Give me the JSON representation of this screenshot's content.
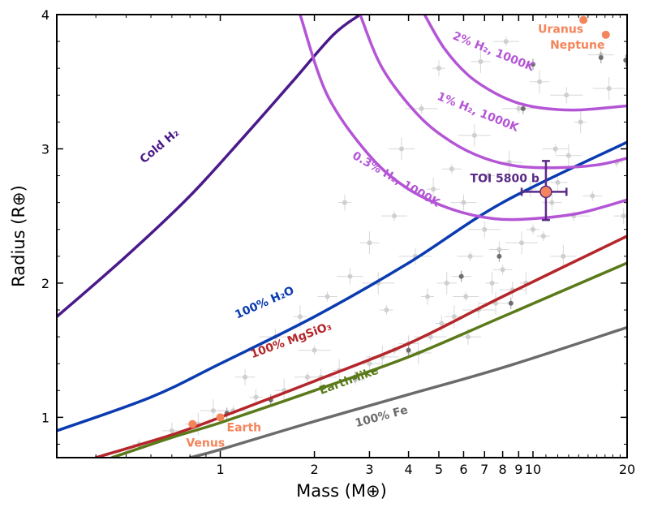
{
  "chart_data": {
    "type": "line",
    "xlabel": "Mass (M⊕)",
    "ylabel": "Radius (R⊕)",
    "xscale": "log",
    "xlim": [
      0.3,
      20
    ],
    "ylim": [
      0.7,
      4
    ],
    "x_ticks": [
      "1",
      "2",
      "3",
      "4",
      "5",
      "6",
      "7",
      "8",
      "9",
      "10",
      "20"
    ],
    "y_ticks": [
      "1",
      "2",
      "3",
      "4"
    ],
    "curves": [
      {
        "name": "Cold H₂",
        "label": "Cold H₂",
        "color": "#4b1a8a",
        "x": [
          0.3,
          0.5,
          0.8,
          1.2,
          1.7,
          2.3,
          2.8
        ],
        "y": [
          1.75,
          2.2,
          2.65,
          3.1,
          3.5,
          3.85,
          4.0
        ]
      },
      {
        "name": "100% H₂O",
        "label": "100% H₂O",
        "color": "#0a3bb0",
        "x": [
          0.3,
          0.6,
          1.0,
          2.0,
          4.0,
          8.0,
          20.0
        ],
        "y": [
          0.9,
          1.15,
          1.4,
          1.75,
          2.15,
          2.6,
          3.05
        ]
      },
      {
        "name": "100% MgSiO₃",
        "label": "100% MgSiO₃",
        "color": "#b5262b",
        "x": [
          0.4,
          0.7,
          1.0,
          2.0,
          4.0,
          8.0,
          20.0
        ],
        "y": [
          0.7,
          0.87,
          1.0,
          1.27,
          1.55,
          1.9,
          2.35
        ]
      },
      {
        "name": "Earth-like",
        "label": "Earth-like",
        "color": "#5a7a1a",
        "x": [
          0.45,
          0.7,
          1.0,
          2.0,
          4.0,
          8.0,
          20.0
        ],
        "y": [
          0.7,
          0.85,
          0.96,
          1.2,
          1.45,
          1.75,
          2.15
        ]
      },
      {
        "name": "100% Fe",
        "label": "100% Fe",
        "color": "#6b6b6b",
        "x": [
          0.8,
          1.0,
          2.0,
          4.0,
          8.0,
          20.0
        ],
        "y": [
          0.7,
          0.76,
          0.97,
          1.17,
          1.37,
          1.67
        ]
      },
      {
        "name": "0.3% H₂, 1000K",
        "label": "0.3% H₂, 1000K",
        "color": "#b455d6",
        "x": [
          1.8,
          2.2,
          3.0,
          4.0,
          5.5,
          7.5,
          10.0,
          14.0,
          20.0
        ],
        "y": [
          4.0,
          3.4,
          2.95,
          2.7,
          2.55,
          2.48,
          2.48,
          2.52,
          2.62
        ]
      },
      {
        "name": "1% H₂, 1000K",
        "label": "1% H₂, 1000K",
        "color": "#b455d6",
        "x": [
          2.8,
          3.3,
          4.3,
          5.5,
          7.0,
          9.0,
          12.0,
          16.0,
          20.0
        ],
        "y": [
          4.0,
          3.6,
          3.25,
          3.05,
          2.93,
          2.87,
          2.86,
          2.88,
          2.93
        ]
      },
      {
        "name": "2% H₂, 1000K",
        "label": "2% H₂, 1000K",
        "color": "#b455d6",
        "x": [
          4.5,
          5.2,
          6.2,
          7.5,
          9.0,
          11.0,
          14.0,
          20.0
        ],
        "y": [
          4.0,
          3.75,
          3.55,
          3.42,
          3.34,
          3.3,
          3.29,
          3.32
        ]
      }
    ],
    "highlight_planet": {
      "label": "TOI 5800 b",
      "color": "#f4845a",
      "error_color": "#5b2a86",
      "mass": 11.0,
      "mass_err": [
        1.8,
        1.8
      ],
      "radius": 2.68,
      "radius_err": [
        0.21,
        0.23
      ]
    },
    "solar_system": [
      {
        "label": "Venus",
        "mass": 0.815,
        "radius": 0.95
      },
      {
        "label": "Earth",
        "mass": 1.0,
        "radius": 1.0
      },
      {
        "label": "Uranus",
        "mass": 14.5,
        "radius": 3.96
      },
      {
        "label": "Neptune",
        "mass": 17.1,
        "radius": 3.85
      }
    ],
    "background_planets": [
      [
        0.55,
        0.8
      ],
      [
        0.7,
        0.9
      ],
      [
        0.85,
        0.95
      ],
      [
        1.1,
        1.05
      ],
      [
        1.3,
        1.15
      ],
      [
        1.6,
        1.2
      ],
      [
        1.9,
        1.3
      ],
      [
        2.1,
        1.3
      ],
      [
        2.4,
        1.35
      ],
      [
        2.7,
        1.28
      ],
      [
        3.0,
        1.4
      ],
      [
        3.3,
        1.45
      ],
      [
        3.6,
        1.5
      ],
      [
        4.0,
        1.55
      ],
      [
        4.3,
        1.48
      ],
      [
        4.7,
        1.6
      ],
      [
        5.1,
        1.7
      ],
      [
        5.6,
        1.75
      ],
      [
        6.1,
        1.9
      ],
      [
        6.7,
        1.8
      ],
      [
        7.4,
        2.0
      ],
      [
        8.0,
        2.1
      ],
      [
        8.6,
        1.95
      ],
      [
        9.2,
        2.3
      ],
      [
        10.0,
        2.4
      ],
      [
        11.5,
        2.6
      ],
      [
        12.5,
        2.2
      ],
      [
        13.5,
        2.5
      ],
      [
        2.5,
        2.6
      ],
      [
        3.0,
        2.3
      ],
      [
        3.6,
        2.5
      ],
      [
        4.2,
        2.2
      ],
      [
        4.8,
        2.7
      ],
      [
        5.5,
        2.85
      ],
      [
        6.0,
        2.6
      ],
      [
        6.5,
        3.1
      ],
      [
        7.2,
        2.8
      ],
      [
        7.8,
        2.25
      ],
      [
        8.4,
        2.9
      ],
      [
        9.0,
        3.3
      ],
      [
        9.8,
        2.7
      ],
      [
        10.5,
        3.5
      ],
      [
        11.8,
        3.0
      ],
      [
        12.8,
        3.4
      ],
      [
        14.2,
        3.2
      ],
      [
        15.5,
        2.65
      ],
      [
        16.5,
        3.7
      ],
      [
        17.5,
        3.45
      ],
      [
        18.5,
        2.9
      ],
      [
        19.5,
        2.5
      ],
      [
        3.8,
        3.0
      ],
      [
        4.4,
        3.3
      ],
      [
        5.0,
        3.6
      ],
      [
        6.8,
        3.65
      ],
      [
        8.2,
        3.8
      ],
      [
        1.5,
        1.6
      ],
      [
        1.8,
        1.75
      ],
      [
        2.2,
        1.9
      ],
      [
        2.6,
        2.05
      ],
      [
        3.2,
        2.0
      ],
      [
        3.4,
        1.8
      ],
      [
        1.2,
        1.3
      ],
      [
        0.95,
        1.05
      ],
      [
        2.0,
        1.5
      ],
      [
        4.6,
        1.9
      ],
      [
        5.3,
        2.0
      ],
      [
        6.3,
        2.2
      ],
      [
        7.0,
        2.4
      ],
      [
        9.5,
        2.0
      ],
      [
        5.9,
        2.05
      ],
      [
        6.2,
        1.6
      ],
      [
        7.6,
        1.85
      ],
      [
        10.8,
        2.35
      ],
      [
        12.0,
        2.75
      ],
      [
        13.0,
        2.95
      ]
    ],
    "dark_planets": [
      [
        1.05,
        1.03
      ],
      [
        1.45,
        1.13
      ],
      [
        2.7,
        1.3
      ],
      [
        4.0,
        1.5
      ],
      [
        5.9,
        2.05
      ],
      [
        7.8,
        2.2
      ],
      [
        8.5,
        1.85
      ],
      [
        9.3,
        3.3
      ],
      [
        10.0,
        3.63
      ],
      [
        16.5,
        3.68
      ],
      [
        19.8,
        3.66
      ]
    ]
  }
}
